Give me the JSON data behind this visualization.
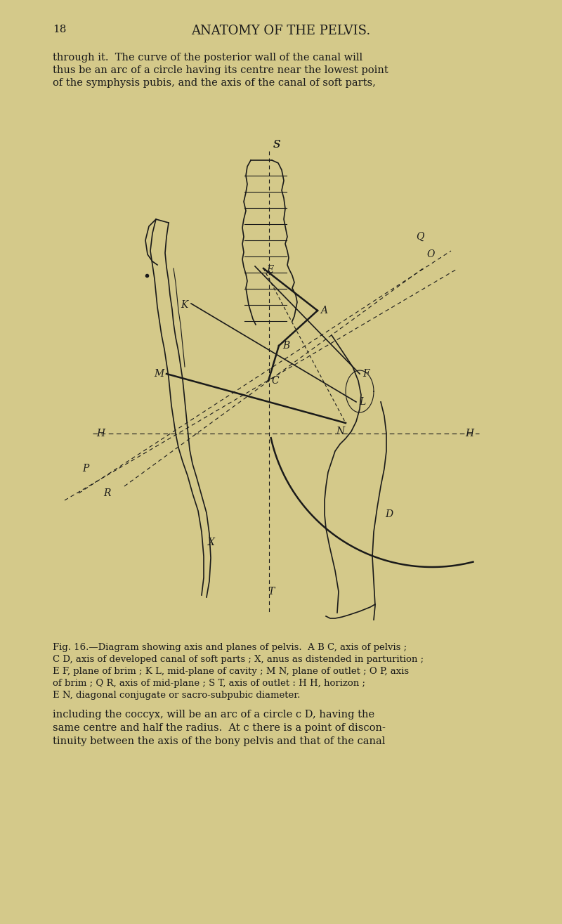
{
  "bg_color": "#d4c98a",
  "line_color": "#1a1a1a",
  "title_text": "ANATOMY OF THE PELVIS.",
  "page_num": "18",
  "header_text1": "through it.  The curve of the posterior wall of the canal will",
  "header_text2": "thus be an arc of a circle having its centre near the lowest point",
  "header_text3": "of the symphysis pubis, and the axis of the canal of soft parts,",
  "caption_lines": [
    "Fig. 16.—Diagram showing axis and planes of pelvis.  A B C, axis of pelvis ;",
    "C D, axis of developed canal of soft parts ; X, anus as distended in parturition ;",
    "E F, plane of brim ; K L, mid-plane of cavity ; M N, plane of outlet ; O P, axis",
    "of brim ; Q R, axis of mid-plane ; S T, axis of outlet : H H, horizon ;",
    "E N, diagonal conjugate or sacro-subpubic diameter."
  ],
  "footer_text1": "including the coccyx, will be an arc of a circle c D, having the",
  "footer_text2": "same centre and half the radius.  At c there is a point of discon-",
  "footer_text3": "tinuity between the axis of the bony pelvis and that of the canal"
}
